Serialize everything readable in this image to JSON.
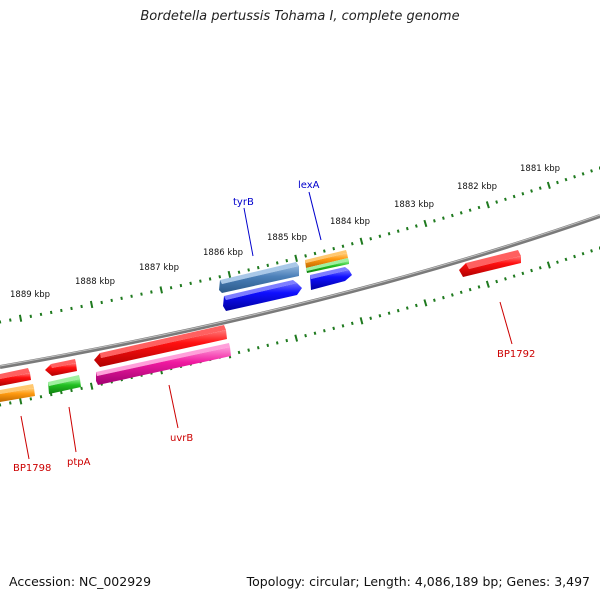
{
  "title": "Bordetella pertussis Tohama I, complete genome",
  "footer": {
    "accession": "Accession: NC_002929",
    "summary": "Topology: circular; Length: 4,086,189 bp; Genes: 3,497"
  },
  "colors": {
    "backbone": "#888888",
    "tick": "#1f7a1f",
    "label_blue": "#0000cc",
    "label_red": "#cc0000",
    "tick_label": "#111111"
  },
  "kbp_labels": [
    "1881 kbp",
    "1882 kbp",
    "1883 kbp",
    "1884 kbp",
    "1885 kbp",
    "1886 kbp",
    "1887 kbp",
    "1888 kbp",
    "1889 kbp"
  ],
  "gene_labels": {
    "tyrB": "tyrB",
    "lexA": "lexA",
    "BP1792": "BP1792",
    "uvrB": "uvrB",
    "ptpA": "ptpA",
    "BP1798": "BP1798"
  }
}
